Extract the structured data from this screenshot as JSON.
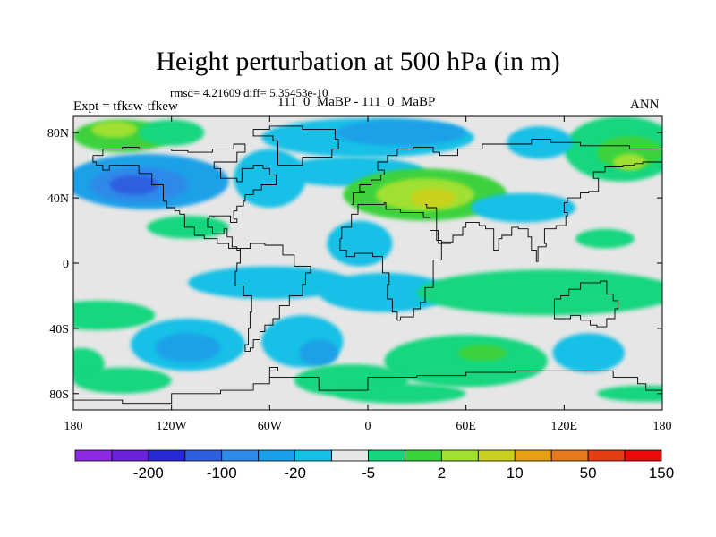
{
  "title": "Height perturbation at 500 hPa (in m)",
  "stats_line": "rmsd= 4.21609 diff= 5.35453e-10",
  "left_label": "Expt = tfksw-tfkew",
  "center_label": "111_0_MaBP - 111_0_MaBP",
  "right_label": "ANN",
  "map": {
    "lon_range": [
      -180,
      180
    ],
    "lat_range": [
      -90,
      90
    ],
    "x_ticks": [
      {
        "lon": -180,
        "label": "180"
      },
      {
        "lon": -120,
        "label": "120W"
      },
      {
        "lon": -60,
        "label": "60W"
      },
      {
        "lon": 0,
        "label": "0"
      },
      {
        "lon": 60,
        "label": "60E"
      },
      {
        "lon": 120,
        "label": "120E"
      },
      {
        "lon": 180,
        "label": "180"
      }
    ],
    "y_ticks": [
      {
        "lat": 80,
        "label": "80N"
      },
      {
        "lat": 40,
        "label": "40N"
      },
      {
        "lat": 0,
        "label": "0"
      },
      {
        "lat": -40,
        "label": "40S"
      },
      {
        "lat": -80,
        "label": "80S"
      }
    ],
    "background_color": "#e6e6e6",
    "coastline_color": "#000000"
  },
  "colorbar": {
    "colors": [
      "#8a2be2",
      "#6a22d8",
      "#2828d8",
      "#2f5fe0",
      "#2f8ae8",
      "#1aa0e8",
      "#14c0e6",
      "#e6e6e6",
      "#14d67f",
      "#3cd23c",
      "#a0e030",
      "#c8d21e",
      "#e6a014",
      "#e6781e",
      "#e63c14",
      "#ee0a0a"
    ],
    "labels": [
      {
        "after_index": 1,
        "text": "-200"
      },
      {
        "after_index": 3,
        "text": "-100"
      },
      {
        "after_index": 5,
        "text": "-20"
      },
      {
        "after_index": 7,
        "text": "-5"
      },
      {
        "after_index": 9,
        "text": "2"
      },
      {
        "after_index": 11,
        "text": "10"
      },
      {
        "after_index": 13,
        "text": "50"
      },
      {
        "after_index": 15,
        "text": "150"
      }
    ]
  },
  "field_blobs": [
    {
      "lon": -150,
      "lat": 78,
      "rlon": 30,
      "rlat": 10,
      "level": 9
    },
    {
      "lon": -155,
      "lat": 82,
      "rlon": 14,
      "rlat": 5,
      "level": 10
    },
    {
      "lon": -120,
      "lat": 80,
      "rlon": 20,
      "rlat": 8,
      "level": 8
    },
    {
      "lon": -135,
      "lat": 50,
      "rlon": 50,
      "rlat": 17,
      "level": 5
    },
    {
      "lon": -140,
      "lat": 48,
      "rlon": 30,
      "rlat": 11,
      "level": 4
    },
    {
      "lon": -143,
      "lat": 48,
      "rlon": 15,
      "rlat": 6,
      "level": 3
    },
    {
      "lon": -110,
      "lat": 22,
      "rlon": 25,
      "rlat": 7,
      "level": 8
    },
    {
      "lon": -60,
      "lat": 52,
      "rlon": 22,
      "rlat": 18,
      "level": 6
    },
    {
      "lon": 0,
      "lat": 77,
      "rlon": 65,
      "rlat": 12,
      "level": 6
    },
    {
      "lon": 20,
      "lat": 80,
      "rlon": 40,
      "rlat": 8,
      "level": 5
    },
    {
      "lon": -10,
      "lat": 56,
      "rlon": 45,
      "rlat": 9,
      "level": 6
    },
    {
      "lon": 35,
      "lat": 42,
      "rlon": 50,
      "rlat": 16,
      "level": 9
    },
    {
      "lon": 35,
      "lat": 42,
      "rlon": 30,
      "rlat": 10,
      "level": 10
    },
    {
      "lon": 40,
      "lat": 40,
      "rlon": 14,
      "rlat": 6,
      "level": 11
    },
    {
      "lon": 155,
      "lat": 70,
      "rlon": 35,
      "rlat": 20,
      "level": 8
    },
    {
      "lon": 160,
      "lat": 68,
      "rlon": 20,
      "rlat": 10,
      "level": 9
    },
    {
      "lon": 160,
      "lat": 62,
      "rlon": 10,
      "rlat": 5,
      "level": 10
    },
    {
      "lon": 105,
      "lat": 74,
      "rlon": 20,
      "rlat": 10,
      "level": 6
    },
    {
      "lon": 95,
      "lat": 34,
      "rlon": 32,
      "rlat": 9,
      "level": 6
    },
    {
      "lon": 145,
      "lat": 15,
      "rlon": 18,
      "rlat": 6,
      "level": 8
    },
    {
      "lon": -5,
      "lat": 12,
      "rlon": 20,
      "rlat": 14,
      "level": 6
    },
    {
      "lon": -60,
      "lat": -12,
      "rlon": 50,
      "rlat": 10,
      "level": 6
    },
    {
      "lon": 10,
      "lat": -18,
      "rlon": 40,
      "rlat": 12,
      "level": 6
    },
    {
      "lon": 110,
      "lat": -18,
      "rlon": 80,
      "rlat": 14,
      "level": 8
    },
    {
      "lon": -165,
      "lat": -32,
      "rlon": 35,
      "rlat": 9,
      "level": 8
    },
    {
      "lon": -110,
      "lat": -50,
      "rlon": 35,
      "rlat": 16,
      "level": 6
    },
    {
      "lon": -110,
      "lat": -52,
      "rlon": 20,
      "rlat": 9,
      "level": 5
    },
    {
      "lon": -175,
      "lat": -62,
      "rlon": 14,
      "rlat": 10,
      "level": 8
    },
    {
      "lon": -150,
      "lat": -72,
      "rlon": 30,
      "rlat": 8,
      "level": 8
    },
    {
      "lon": -40,
      "lat": -48,
      "rlon": 25,
      "rlat": 16,
      "level": 6
    },
    {
      "lon": -30,
      "lat": -55,
      "rlon": 12,
      "rlat": 8,
      "level": 5
    },
    {
      "lon": 60,
      "lat": -60,
      "rlon": 50,
      "rlat": 16,
      "level": 8
    },
    {
      "lon": 70,
      "lat": -55,
      "rlon": 15,
      "rlat": 5,
      "level": 9
    },
    {
      "lon": 135,
      "lat": -55,
      "rlon": 22,
      "rlat": 12,
      "level": 6
    },
    {
      "lon": 170,
      "lat": -80,
      "rlon": 30,
      "rlat": 5,
      "level": 8
    },
    {
      "lon": -10,
      "lat": -72,
      "rlon": 35,
      "rlat": 10,
      "level": 8
    },
    {
      "lon": 20,
      "lat": -80,
      "rlon": 40,
      "rlat": 6,
      "level": 8
    }
  ],
  "coastlines": [
    [
      [
        -168,
        66
      ],
      [
        -162,
        70
      ],
      [
        -150,
        71
      ],
      [
        -140,
        70
      ],
      [
        -130,
        70
      ],
      [
        -120,
        69
      ],
      [
        -110,
        68
      ],
      [
        -95,
        70
      ],
      [
        -82,
        73
      ],
      [
        -75,
        68
      ],
      [
        -80,
        62
      ],
      [
        -94,
        58
      ],
      [
        -90,
        52
      ],
      [
        -80,
        50
      ],
      [
        -77,
        58
      ],
      [
        -70,
        60
      ],
      [
        -64,
        58
      ],
      [
        -60,
        54
      ],
      [
        -56,
        48
      ],
      [
        -65,
        45
      ],
      [
        -70,
        42
      ],
      [
        -75,
        38
      ],
      [
        -76,
        35
      ],
      [
        -80,
        32
      ],
      [
        -82,
        27
      ],
      [
        -80,
        25
      ],
      [
        -84,
        29
      ],
      [
        -90,
        29
      ],
      [
        -97,
        27
      ],
      [
        -98,
        22
      ],
      [
        -95,
        18
      ],
      [
        -91,
        18
      ],
      [
        -88,
        21
      ],
      [
        -86,
        16
      ],
      [
        -83,
        10
      ],
      [
        -80,
        8
      ],
      [
        -78,
        9
      ],
      [
        -85,
        12
      ],
      [
        -92,
        15
      ],
      [
        -100,
        17
      ],
      [
        -106,
        22
      ],
      [
        -112,
        30
      ],
      [
        -115,
        32
      ],
      [
        -118,
        34
      ],
      [
        -123,
        38
      ],
      [
        -125,
        48
      ],
      [
        -132,
        55
      ],
      [
        -140,
        60
      ],
      [
        -150,
        60
      ],
      [
        -158,
        57
      ],
      [
        -162,
        60
      ],
      [
        -166,
        62
      ],
      [
        -168,
        66
      ]
    ],
    [
      [
        -78,
        9
      ],
      [
        -72,
        12
      ],
      [
        -63,
        11
      ],
      [
        -52,
        5
      ],
      [
        -45,
        -2
      ],
      [
        -35,
        -6
      ],
      [
        -38,
        -13
      ],
      [
        -40,
        -20
      ],
      [
        -48,
        -26
      ],
      [
        -54,
        -34
      ],
      [
        -58,
        -38
      ],
      [
        -63,
        -42
      ],
      [
        -66,
        -47
      ],
      [
        -70,
        -52
      ],
      [
        -72,
        -54
      ],
      [
        -75,
        -50
      ],
      [
        -73,
        -40
      ],
      [
        -72,
        -30
      ],
      [
        -71,
        -20
      ],
      [
        -76,
        -14
      ],
      [
        -81,
        -5
      ],
      [
        -80,
        0
      ],
      [
        -78,
        9
      ]
    ],
    [
      [
        -55,
        60
      ],
      [
        -45,
        60
      ],
      [
        -40,
        65
      ],
      [
        -22,
        70
      ],
      [
        -18,
        76
      ],
      [
        -20,
        82
      ],
      [
        -40,
        84
      ],
      [
        -60,
        82
      ],
      [
        -70,
        78
      ],
      [
        -58,
        75
      ],
      [
        -55,
        68
      ],
      [
        -55,
        60
      ]
    ],
    [
      [
        -17,
        15
      ],
      [
        -16,
        22
      ],
      [
        -10,
        30
      ],
      [
        -6,
        36
      ],
      [
        10,
        37
      ],
      [
        11,
        33
      ],
      [
        20,
        31
      ],
      [
        32,
        31
      ],
      [
        34,
        28
      ],
      [
        38,
        20
      ],
      [
        43,
        12
      ],
      [
        51,
        12
      ],
      [
        45,
        2
      ],
      [
        40,
        -5
      ],
      [
        40,
        -15
      ],
      [
        35,
        -24
      ],
      [
        32,
        -28
      ],
      [
        28,
        -33
      ],
      [
        20,
        -35
      ],
      [
        18,
        -30
      ],
      [
        15,
        -22
      ],
      [
        12,
        -13
      ],
      [
        13,
        -6
      ],
      [
        9,
        0
      ],
      [
        9,
        4
      ],
      [
        3,
        6
      ],
      [
        -8,
        4
      ],
      [
        -13,
        8
      ],
      [
        -17,
        15
      ]
    ],
    [
      [
        -10,
        36
      ],
      [
        -9,
        43
      ],
      [
        -2,
        44
      ],
      [
        -5,
        48
      ],
      [
        2,
        51
      ],
      [
        8,
        54
      ],
      [
        10,
        57
      ],
      [
        6,
        62
      ],
      [
        12,
        66
      ],
      [
        18,
        70
      ],
      [
        28,
        71
      ],
      [
        40,
        68
      ],
      [
        44,
        66
      ],
      [
        55,
        70
      ],
      [
        70,
        73
      ],
      [
        80,
        73
      ],
      [
        100,
        76
      ],
      [
        112,
        74
      ],
      [
        130,
        72
      ],
      [
        150,
        72
      ],
      [
        160,
        70
      ],
      [
        170,
        70
      ],
      [
        180,
        68
      ]
    ],
    [
      [
        35,
        36
      ],
      [
        36,
        34
      ],
      [
        42,
        14
      ],
      [
        45,
        13
      ],
      [
        52,
        17
      ],
      [
        58,
        22
      ],
      [
        60,
        25
      ],
      [
        66,
        25
      ],
      [
        68,
        23
      ],
      [
        72,
        21
      ],
      [
        77,
        8
      ],
      [
        80,
        15
      ],
      [
        82,
        17
      ],
      [
        88,
        22
      ],
      [
        92,
        21
      ],
      [
        98,
        16
      ],
      [
        100,
        8
      ],
      [
        103,
        1
      ],
      [
        104,
        10
      ],
      [
        109,
        12
      ],
      [
        108,
        21
      ],
      [
        115,
        23
      ],
      [
        121,
        29
      ],
      [
        122,
        31
      ],
      [
        120,
        37
      ],
      [
        122,
        40
      ],
      [
        130,
        43
      ],
      [
        135,
        44
      ],
      [
        141,
        52
      ],
      [
        138,
        56
      ],
      [
        145,
        59
      ],
      [
        156,
        60
      ],
      [
        163,
        61
      ],
      [
        168,
        62
      ],
      [
        180,
        65
      ]
    ],
    [
      [
        114,
        -22
      ],
      [
        118,
        -20
      ],
      [
        123,
        -16
      ],
      [
        130,
        -12
      ],
      [
        136,
        -12
      ],
      [
        142,
        -11
      ],
      [
        146,
        -19
      ],
      [
        150,
        -23
      ],
      [
        153,
        -28
      ],
      [
        151,
        -34
      ],
      [
        146,
        -39
      ],
      [
        140,
        -38
      ],
      [
        136,
        -35
      ],
      [
        130,
        -32
      ],
      [
        124,
        -34
      ],
      [
        116,
        -34
      ],
      [
        114,
        -28
      ],
      [
        114,
        -22
      ]
    ],
    [
      [
        -180,
        -84
      ],
      [
        -150,
        -86
      ],
      [
        -120,
        -80
      ],
      [
        -90,
        -78
      ],
      [
        -70,
        -74
      ],
      [
        -60,
        -66
      ],
      [
        -55,
        -64
      ],
      [
        -60,
        -70
      ],
      [
        -30,
        -78
      ],
      [
        0,
        -70
      ],
      [
        30,
        -69
      ],
      [
        60,
        -67
      ],
      [
        90,
        -66
      ],
      [
        120,
        -66
      ],
      [
        150,
        -70
      ],
      [
        165,
        -74
      ],
      [
        170,
        -78
      ],
      [
        180,
        -84
      ]
    ]
  ]
}
